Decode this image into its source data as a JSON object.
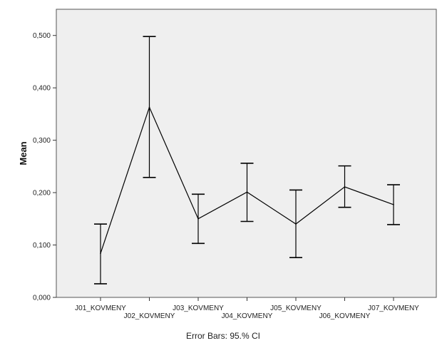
{
  "chart_data": {
    "type": "line",
    "title": "",
    "xlabel": "",
    "ylabel": "Mean",
    "ylim": [
      0,
      0.55
    ],
    "yticks": [
      {
        "value": 0.0,
        "label": "0,000"
      },
      {
        "value": 0.1,
        "label": "0,100"
      },
      {
        "value": 0.2,
        "label": "0,200"
      },
      {
        "value": 0.3,
        "label": "0,300"
      },
      {
        "value": 0.4,
        "label": "0,400"
      },
      {
        "value": 0.5,
        "label": "0,500"
      }
    ],
    "categories": [
      "J01_KOVMENY",
      "J02_KOVMENY",
      "J03_KOVMENY",
      "J04_KOVMENY",
      "J05_KOVMENY",
      "J06_KOVMENY",
      "J07_KOVMENY"
    ],
    "series": [
      {
        "values": [
          0.084,
          0.363,
          0.15,
          0.201,
          0.14,
          0.211,
          0.177
        ],
        "ci_low": [
          0.026,
          0.229,
          0.103,
          0.145,
          0.076,
          0.172,
          0.139
        ],
        "ci_high": [
          0.14,
          0.498,
          0.197,
          0.256,
          0.205,
          0.251,
          0.215
        ]
      }
    ],
    "footnote": "Error Bars: 95.% CI",
    "grid": false,
    "plot_background": "#efefef",
    "line_color": "#000000"
  }
}
